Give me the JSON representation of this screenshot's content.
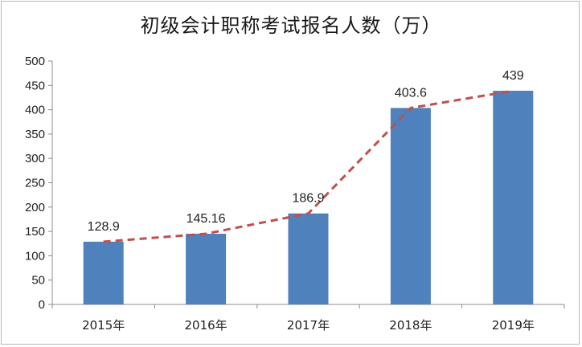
{
  "chart_data": {
    "type": "bar",
    "title": "初级会计职称考试报名人数（万）",
    "categories": [
      "2015年",
      "2016年",
      "2017年",
      "2018年",
      "2019年"
    ],
    "values": [
      128.9,
      145.16,
      186.9,
      403.6,
      439
    ],
    "data_labels": [
      "128.9",
      "145.16",
      "186.9",
      "403.6",
      "439"
    ],
    "ylim": [
      0,
      500
    ],
    "yticks": [
      0,
      50,
      100,
      150,
      200,
      250,
      300,
      350,
      400,
      450,
      500
    ],
    "grid": false,
    "trend_line": "dashed",
    "colors": {
      "bar": "#4f81bd",
      "trend": "#c0504d"
    }
  }
}
